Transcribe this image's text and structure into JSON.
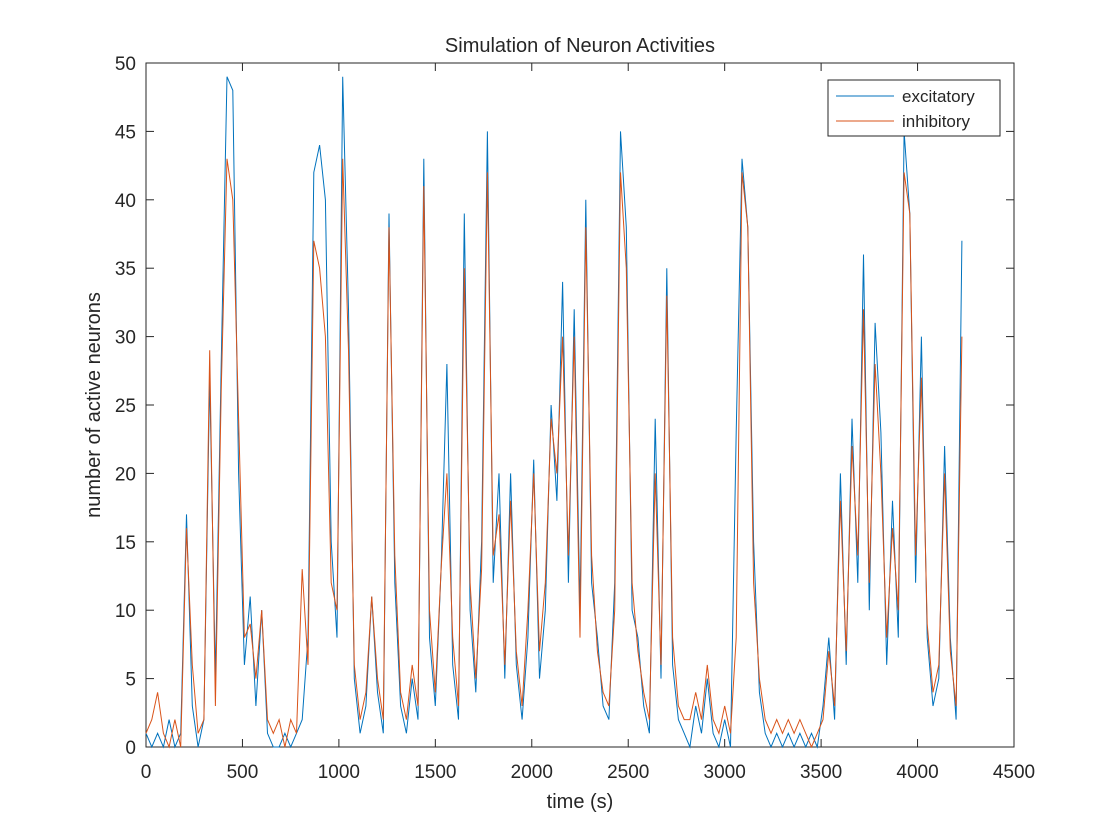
{
  "chart_data": {
    "type": "line",
    "title": "Simulation of Neuron Activities",
    "x_label": "time (s)",
    "y_label": "number of active neurons",
    "x": [
      0,
      30,
      60,
      90,
      120,
      150,
      180,
      210,
      240,
      270,
      300,
      330,
      360,
      390,
      420,
      450,
      480,
      510,
      540,
      570,
      600,
      630,
      660,
      690,
      720,
      750,
      780,
      810,
      840,
      870,
      900,
      930,
      960,
      990,
      1020,
      1050,
      1080,
      1110,
      1140,
      1170,
      1200,
      1230,
      1260,
      1290,
      1320,
      1350,
      1380,
      1410,
      1440,
      1470,
      1500,
      1530,
      1560,
      1590,
      1620,
      1650,
      1680,
      1710,
      1740,
      1770,
      1800,
      1830,
      1860,
      1890,
      1920,
      1950,
      1980,
      2010,
      2040,
      2070,
      2100,
      2130,
      2160,
      2190,
      2220,
      2250,
      2280,
      2310,
      2340,
      2370,
      2400,
      2430,
      2460,
      2490,
      2520,
      2550,
      2580,
      2610,
      2640,
      2670,
      2700,
      2730,
      2760,
      2790,
      2820,
      2850,
      2880,
      2910,
      2940,
      2970,
      3000,
      3030,
      3060,
      3090,
      3120,
      3150,
      3180,
      3210,
      3240,
      3270,
      3300,
      3330,
      3360,
      3390,
      3420,
      3450,
      3480,
      3510,
      3540,
      3570,
      3600,
      3630,
      3660,
      3690,
      3720,
      3750,
      3780,
      3810,
      3840,
      3870,
      3900,
      3930,
      3960,
      3990,
      4020,
      4050,
      4080,
      4110,
      4140,
      4170,
      4200,
      4230
    ],
    "series": [
      {
        "name": "excitatory",
        "color": "#0072bd",
        "values": [
          1,
          0,
          1,
          0,
          2,
          0,
          1,
          17,
          3,
          0,
          2,
          27,
          5,
          28,
          49,
          48,
          20,
          6,
          11,
          3,
          10,
          1,
          0,
          0,
          1,
          0,
          1,
          2,
          8,
          42,
          44,
          40,
          15,
          8,
          49,
          32,
          5,
          1,
          3,
          11,
          4,
          1,
          39,
          12,
          3,
          1,
          5,
          2,
          43,
          8,
          3,
          13,
          28,
          6,
          2,
          39,
          10,
          4,
          15,
          45,
          12,
          20,
          5,
          20,
          6,
          2,
          8,
          21,
          5,
          10,
          25,
          18,
          34,
          12,
          32,
          10,
          40,
          12,
          8,
          3,
          2,
          12,
          45,
          38,
          10,
          8,
          3,
          1,
          24,
          5,
          35,
          6,
          2,
          1,
          0,
          3,
          1,
          5,
          1,
          0,
          2,
          0,
          23,
          43,
          38,
          15,
          4,
          1,
          0,
          1,
          0,
          1,
          0,
          1,
          0,
          1,
          0,
          3,
          8,
          2,
          20,
          6,
          24,
          12,
          36,
          10,
          31,
          23,
          6,
          18,
          8,
          45,
          39,
          12,
          30,
          8,
          3,
          5,
          22,
          8,
          2,
          37
        ]
      },
      {
        "name": "inhibitory",
        "color": "#d95319",
        "values": [
          1,
          2,
          4,
          1,
          0,
          2,
          0,
          16,
          6,
          1,
          2,
          29,
          3,
          26,
          43,
          40,
          24,
          8,
          9,
          5,
          10,
          2,
          1,
          2,
          0,
          2,
          1,
          13,
          6,
          37,
          35,
          30,
          12,
          10,
          43,
          29,
          6,
          2,
          4,
          11,
          5,
          2,
          38,
          14,
          4,
          2,
          6,
          3,
          41,
          10,
          4,
          13,
          20,
          8,
          3,
          35,
          12,
          5,
          13,
          42,
          14,
          17,
          6,
          18,
          7,
          3,
          10,
          20,
          7,
          12,
          24,
          20,
          30,
          14,
          30,
          8,
          38,
          14,
          7,
          4,
          3,
          10,
          42,
          35,
          12,
          7,
          4,
          2,
          20,
          6,
          33,
          8,
          3,
          2,
          2,
          4,
          2,
          6,
          2,
          1,
          3,
          1,
          8,
          42,
          38,
          12,
          5,
          2,
          1,
          2,
          1,
          2,
          1,
          2,
          1,
          0,
          1,
          2,
          7,
          3,
          18,
          7,
          22,
          14,
          32,
          12,
          28,
          20,
          8,
          16,
          10,
          42,
          39,
          14,
          27,
          9,
          4,
          6,
          20,
          7,
          3,
          30
        ]
      }
    ],
    "xlim": [
      0,
      4500
    ],
    "xticks": [
      0,
      500,
      1000,
      1500,
      2000,
      2500,
      3000,
      3500,
      4000,
      4500
    ],
    "ylim": [
      0,
      50
    ],
    "yticks": [
      0,
      5,
      10,
      15,
      20,
      25,
      30,
      35,
      40,
      45,
      50
    ],
    "grid": false,
    "legend": "top-right"
  }
}
